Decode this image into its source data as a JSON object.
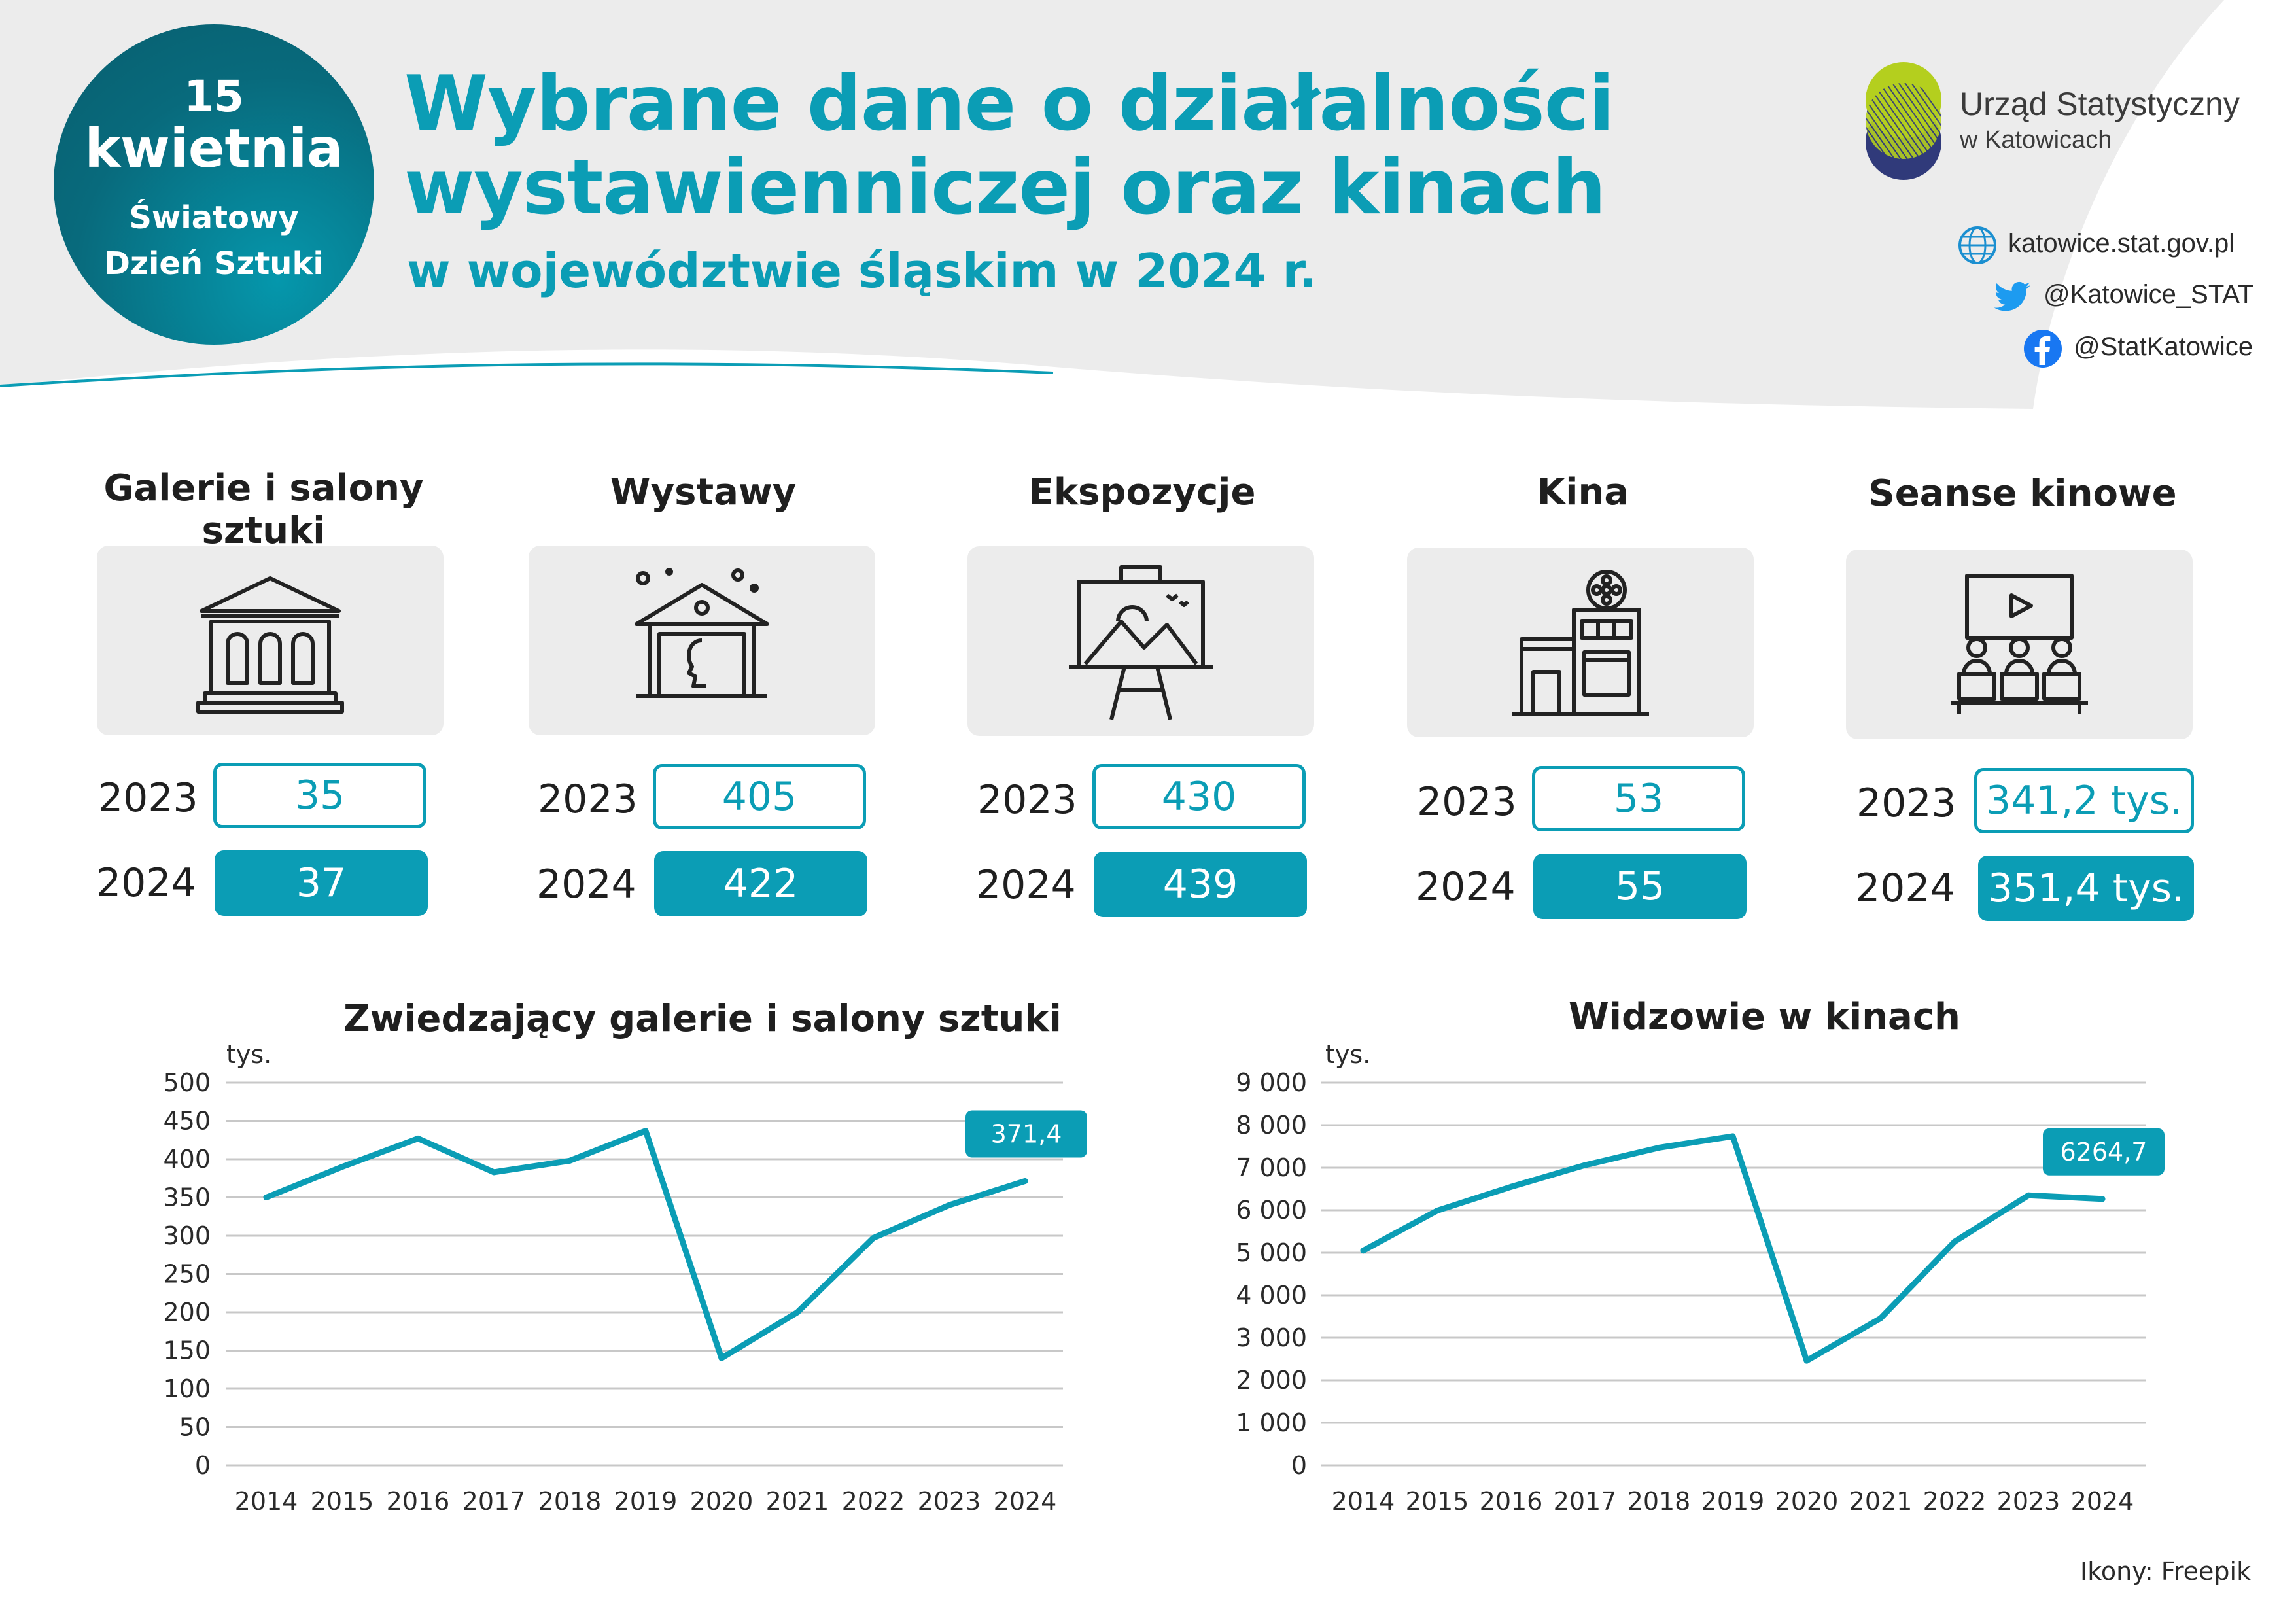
{
  "badge": {
    "day": "15",
    "month": "kwietnia",
    "occasion_line1": "Światowy",
    "occasion_line2": "Dzień Sztuki"
  },
  "header": {
    "title_line1": "Wybrane dane o działalności",
    "title_line2": "wystawienniczej oraz kinach",
    "subtitle": "w województwie śląskim w 2024 r."
  },
  "logo": {
    "name": "Urząd Statystyczny",
    "city": "w Katowicach"
  },
  "social": {
    "website": "katowice.stat.gov.pl",
    "twitter": "@Katowice_STAT",
    "facebook": "@StatKatowice"
  },
  "stats": [
    {
      "title": "Galerie i salony sztuki",
      "icon": "gallery-building-icon",
      "y1": "2023",
      "v1": "35",
      "y2": "2024",
      "v2": "37"
    },
    {
      "title": "Wystawy",
      "icon": "exhibition-icon",
      "y1": "2023",
      "v1": "405",
      "y2": "2024",
      "v2": "422"
    },
    {
      "title": "Ekspozycje",
      "icon": "easel-painting-icon",
      "y1": "2023",
      "v1": "430",
      "y2": "2024",
      "v2": "439"
    },
    {
      "title": "Kina",
      "icon": "cinema-building-icon",
      "y1": "2023",
      "v1": "53",
      "y2": "2024",
      "v2": "55"
    },
    {
      "title": "Seanse kinowe",
      "icon": "cinema-audience-icon",
      "y1": "2023",
      "v1": "341,2 tys.",
      "y2": "2024",
      "v2": "351,4 tys."
    }
  ],
  "colors": {
    "accent": "#0b9db5",
    "grid": "#c8c8c8",
    "box_bg": "#ececec"
  },
  "chart_data": [
    {
      "type": "line",
      "title": "Zwiedzający galerie i salony sztuki",
      "ylabel": "tys.",
      "x": [
        "2014",
        "2015",
        "2016",
        "2017",
        "2018",
        "2019",
        "2020",
        "2021",
        "2022",
        "2023",
        "2024"
      ],
      "values": [
        350,
        390,
        427,
        383,
        398,
        437,
        140,
        200,
        297,
        340,
        371.4
      ],
      "ylim": [
        0,
        500
      ],
      "yticks": [
        "0",
        "50",
        "100",
        "150",
        "200",
        "250",
        "300",
        "350",
        "400",
        "450",
        "500"
      ],
      "callout": "371,4",
      "grid": true
    },
    {
      "type": "line",
      "title": "Widzowie w kinach",
      "ylabel": "tys.",
      "x": [
        "2014",
        "2015",
        "2016",
        "2017",
        "2018",
        "2019",
        "2020",
        "2021",
        "2022",
        "2023",
        "2024"
      ],
      "values": [
        5050,
        5990,
        6550,
        7060,
        7470,
        7740,
        2460,
        3460,
        5260,
        6350,
        6264.7
      ],
      "ylim": [
        0,
        9000
      ],
      "yticks": [
        "0",
        "1 000",
        "2 000",
        "3 000",
        "4 000",
        "5 000",
        "6 000",
        "7 000",
        "8 000",
        "9 000"
      ],
      "callout": "6264,7",
      "grid": true
    }
  ],
  "footer": "Ikony: Freepik"
}
